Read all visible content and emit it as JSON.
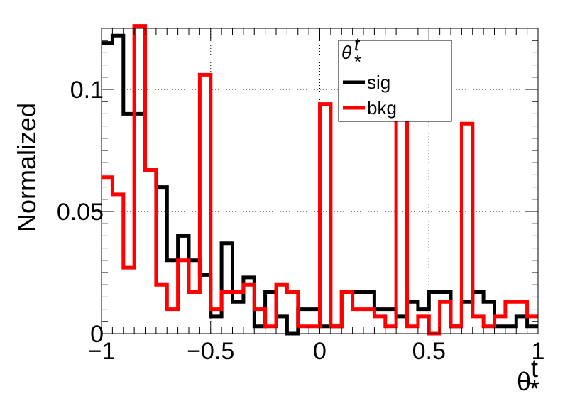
{
  "chart_data": {
    "type": "histogram",
    "xlabel": "θ*t",
    "xlabel_main": "θ",
    "xlabel_sup": "t",
    "xlabel_sub": "*",
    "ylabel": "Normalized",
    "xlim": [
      -1,
      1
    ],
    "ylim": [
      0,
      0.125
    ],
    "grid": true,
    "x_ticks": [
      -1,
      -0.5,
      0,
      0.5,
      1
    ],
    "x_tick_labels": [
      "−1",
      "−0.5",
      "0",
      "0.5",
      "1"
    ],
    "y_ticks": [
      0,
      0.05,
      0.1
    ],
    "y_tick_labels": [
      "0",
      "0.05",
      "0.1"
    ],
    "bin_edges": [
      -1,
      -0.95,
      -0.9,
      -0.85,
      -0.8,
      -0.75,
      -0.7,
      -0.65,
      -0.6,
      -0.55,
      -0.5,
      -0.45,
      -0.4,
      -0.35,
      -0.3,
      -0.25,
      -0.2,
      -0.15,
      -0.1,
      -0.05,
      0,
      0.05,
      0.1,
      0.15,
      0.2,
      0.25,
      0.3,
      0.35,
      0.4,
      0.45,
      0.5,
      0.55,
      0.6,
      0.65,
      0.7,
      0.75,
      0.8,
      0.85,
      0.9,
      0.95,
      1
    ],
    "legend": {
      "title_main": "θ",
      "title_sup": "t",
      "title_sub": "*",
      "position": "top-right"
    },
    "series": [
      {
        "name": "sig",
        "color": "#000000",
        "values": [
          0.119,
          0.122,
          0.09,
          0.09,
          0.067,
          0.06,
          0.03,
          0.04,
          0.03,
          0.024,
          0.007,
          0.037,
          0.013,
          0.023,
          0.003,
          0.017,
          0.007,
          0.0,
          0.01,
          0.01,
          0.003,
          0.003,
          0.017,
          0.017,
          0.017,
          0.01,
          0.01,
          0.007,
          0.013,
          0.01,
          0.017,
          0.017,
          0.003,
          0.013,
          0.017,
          0.013,
          0.003,
          0.003,
          0.007,
          0.003
        ]
      },
      {
        "name": "bkg",
        "color": "#ff0000",
        "values": [
          0.064,
          0.057,
          0.027,
          0.126,
          0.067,
          0.02,
          0.01,
          0.03,
          0.017,
          0.106,
          0.01,
          0.017,
          0.017,
          0.02,
          0.01,
          0.003,
          0.02,
          0.017,
          0.003,
          0.003,
          0.094,
          0.003,
          0.017,
          0.01,
          0.01,
          0.007,
          0.003,
          0.09,
          0.003,
          0.007,
          0.0,
          0.013,
          0.003,
          0.086,
          0.007,
          0.003,
          0.007,
          0.013,
          0.013,
          0.007
        ]
      }
    ]
  }
}
